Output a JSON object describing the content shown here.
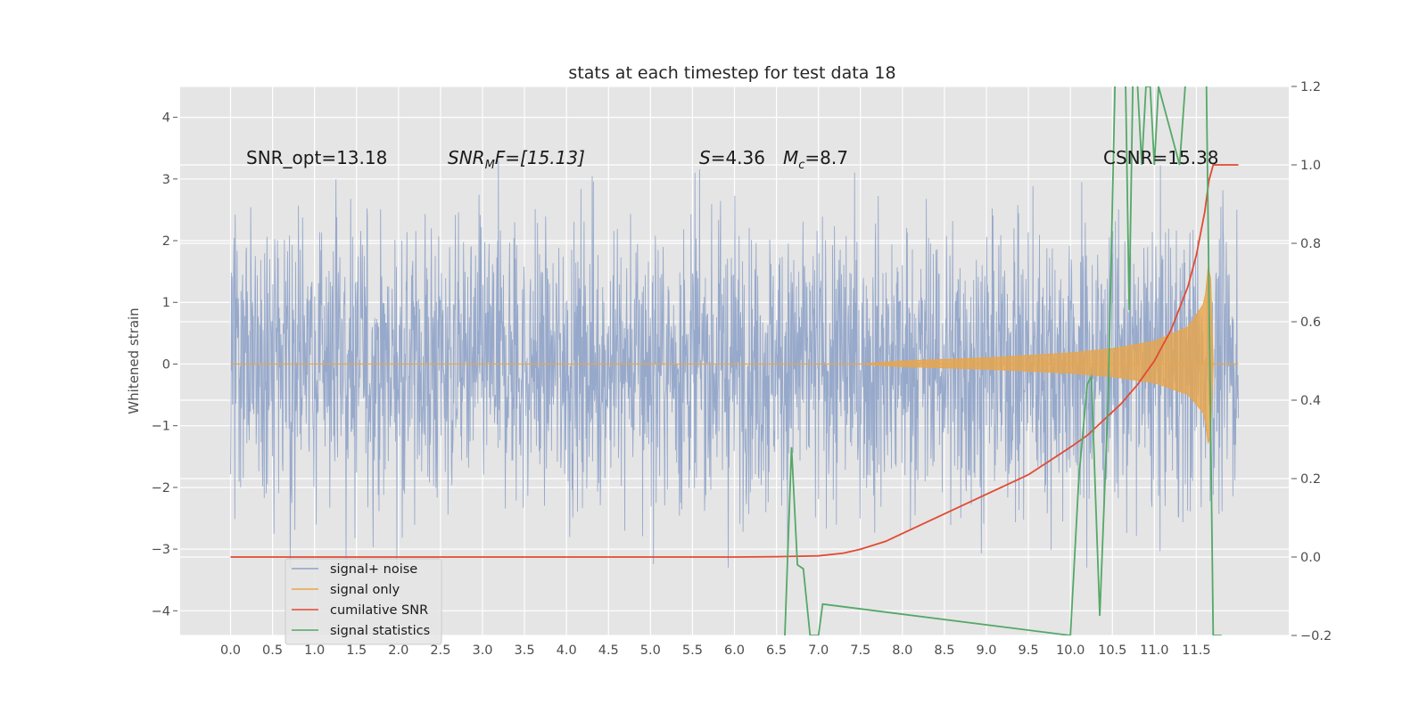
{
  "chart_data": {
    "type": "line",
    "title": "stats at each timestep for test data 18",
    "xlabel": "",
    "ylabel": "Whitened strain",
    "xlim": [
      -0.6,
      12.6
    ],
    "ylim": [
      -4.4,
      4.5
    ],
    "y2lim": [
      -0.2,
      1.2
    ],
    "grid": true,
    "legend_position": "lower-left",
    "x_ticks": [
      "0.0",
      "0.5",
      "1.0",
      "1.5",
      "2.0",
      "2.5",
      "3.0",
      "3.5",
      "4.0",
      "4.5",
      "5.0",
      "5.5",
      "6.0",
      "6.5",
      "7.0",
      "7.5",
      "8.0",
      "8.5",
      "9.0",
      "9.5",
      "10.0",
      "10.5",
      "11.0",
      "11.5"
    ],
    "y_ticks": [
      "4",
      "3",
      "2",
      "1",
      "0",
      "−1",
      "−2",
      "−3",
      "−4"
    ],
    "y2_ticks": [
      "1.2",
      "1.0",
      "0.8",
      "0.6",
      "0.4",
      "0.2",
      "0.0",
      "−0.2"
    ],
    "annotations": {
      "snr_opt": "SNR_opt=13.18",
      "snr_mf_main": "SNR",
      "snr_mf_sub": "M",
      "snr_mf_rest": "F=[15.13]",
      "s_main": "S",
      "s_rest": "=4.36",
      "mc_main": "M",
      "mc_sub": "c",
      "mc_rest": "=8.7",
      "csnr": "CSNR=15.38"
    },
    "series": [
      {
        "name": "signal+ noise",
        "color": "#8ea2c8",
        "axis": "left",
        "x_range": [
          0,
          12
        ],
        "noise_amplitude": 1.2
      },
      {
        "name": "signal only",
        "color": "#e9a54a",
        "axis": "left",
        "x": [
          0,
          7.5,
          8.0,
          9.0,
          10.0,
          10.5,
          11.0,
          11.4,
          11.6,
          11.66,
          11.7,
          12.0
        ],
        "envelope": [
          0.0,
          0.0,
          0.05,
          0.1,
          0.18,
          0.25,
          0.37,
          0.6,
          1.0,
          1.85,
          0.0,
          0.0
        ]
      },
      {
        "name": "cumilative SNR",
        "color": "#e24a33",
        "axis": "right",
        "x": [
          0,
          6.0,
          6.5,
          7.0,
          7.3,
          7.5,
          7.8,
          8.0,
          8.5,
          9.0,
          9.5,
          10.0,
          10.2,
          10.4,
          10.6,
          10.8,
          11.0,
          11.2,
          11.4,
          11.5,
          11.6,
          11.65,
          11.7,
          12.0
        ],
        "values": [
          0.0,
          0.0,
          0.001,
          0.003,
          0.01,
          0.02,
          0.04,
          0.06,
          0.11,
          0.16,
          0.21,
          0.28,
          0.31,
          0.35,
          0.39,
          0.44,
          0.5,
          0.58,
          0.69,
          0.77,
          0.88,
          0.96,
          1.0,
          1.0
        ]
      },
      {
        "name": "signal statistics",
        "color": "#55a868",
        "axis": "right",
        "x": [
          6.6,
          6.68,
          6.75,
          6.82,
          6.9,
          7.0,
          7.05,
          10.0,
          10.1,
          10.2,
          10.25,
          10.3,
          10.35,
          10.45,
          10.55,
          10.65,
          10.7,
          10.75,
          10.8,
          10.85,
          10.9,
          10.95,
          11.0,
          11.05,
          11.3,
          11.4,
          11.5,
          11.6,
          11.62,
          11.7,
          11.8
        ],
        "values": [
          -0.2,
          0.28,
          -0.02,
          -0.03,
          -0.2,
          -0.2,
          -0.12,
          -0.2,
          0.2,
          0.44,
          0.46,
          0.15,
          -0.15,
          0.4,
          1.4,
          1.3,
          0.63,
          1.3,
          1.2,
          1.0,
          1.2,
          1.2,
          1.0,
          1.2,
          1.0,
          1.3,
          1.3,
          1.3,
          1.2,
          -0.2,
          -0.2
        ]
      }
    ]
  }
}
